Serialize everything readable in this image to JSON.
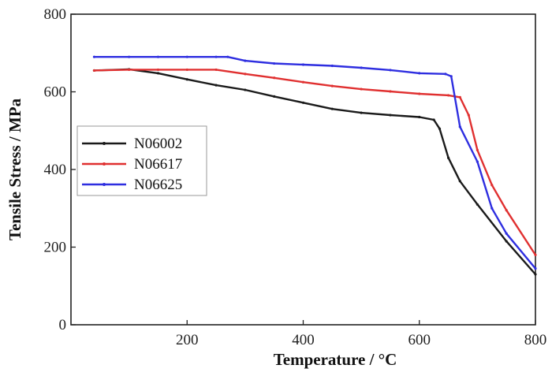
{
  "chart_data": {
    "type": "line",
    "title": "",
    "xlabel": "Temperature / °C",
    "ylabel": "Tensile Stress / MPa",
    "xlim": [
      0,
      800
    ],
    "ylim": [
      0,
      800
    ],
    "x_ticks": [
      200,
      400,
      600,
      800
    ],
    "y_ticks": [
      0,
      200,
      400,
      600,
      800
    ],
    "x_tick_labels": [
      "200",
      "400",
      "600",
      "800"
    ],
    "y_tick_labels": [
      "0",
      "200",
      "400",
      "600",
      "800"
    ],
    "grid": false,
    "legend_position": "center-left",
    "series": [
      {
        "name": "N06002",
        "color": "#1a1a1a",
        "points": [
          [
            40,
            655
          ],
          [
            100,
            658
          ],
          [
            150,
            648
          ],
          [
            200,
            632
          ],
          [
            250,
            617
          ],
          [
            300,
            605
          ],
          [
            350,
            588
          ],
          [
            400,
            572
          ],
          [
            450,
            556
          ],
          [
            500,
            546
          ],
          [
            550,
            540
          ],
          [
            600,
            535
          ],
          [
            625,
            528
          ],
          [
            635,
            505
          ],
          [
            650,
            430
          ],
          [
            670,
            370
          ],
          [
            700,
            310
          ],
          [
            750,
            215
          ],
          [
            800,
            130
          ]
        ]
      },
      {
        "name": "N06617",
        "color": "#e03030",
        "points": [
          [
            40,
            655
          ],
          [
            100,
            657
          ],
          [
            150,
            657
          ],
          [
            200,
            657
          ],
          [
            250,
            657
          ],
          [
            300,
            646
          ],
          [
            350,
            636
          ],
          [
            400,
            625
          ],
          [
            450,
            615
          ],
          [
            500,
            607
          ],
          [
            550,
            601
          ],
          [
            600,
            595
          ],
          [
            650,
            591
          ],
          [
            670,
            586
          ],
          [
            685,
            540
          ],
          [
            700,
            450
          ],
          [
            725,
            360
          ],
          [
            750,
            295
          ],
          [
            800,
            180
          ]
        ]
      },
      {
        "name": "N06625",
        "color": "#2e2ee0",
        "points": [
          [
            40,
            690
          ],
          [
            100,
            690
          ],
          [
            150,
            690
          ],
          [
            200,
            690
          ],
          [
            250,
            690
          ],
          [
            270,
            690
          ],
          [
            300,
            680
          ],
          [
            350,
            673
          ],
          [
            400,
            670
          ],
          [
            450,
            667
          ],
          [
            500,
            662
          ],
          [
            550,
            656
          ],
          [
            600,
            648
          ],
          [
            645,
            646
          ],
          [
            655,
            640
          ],
          [
            670,
            510
          ],
          [
            700,
            420
          ],
          [
            725,
            300
          ],
          [
            750,
            235
          ],
          [
            800,
            145
          ]
        ]
      }
    ]
  }
}
